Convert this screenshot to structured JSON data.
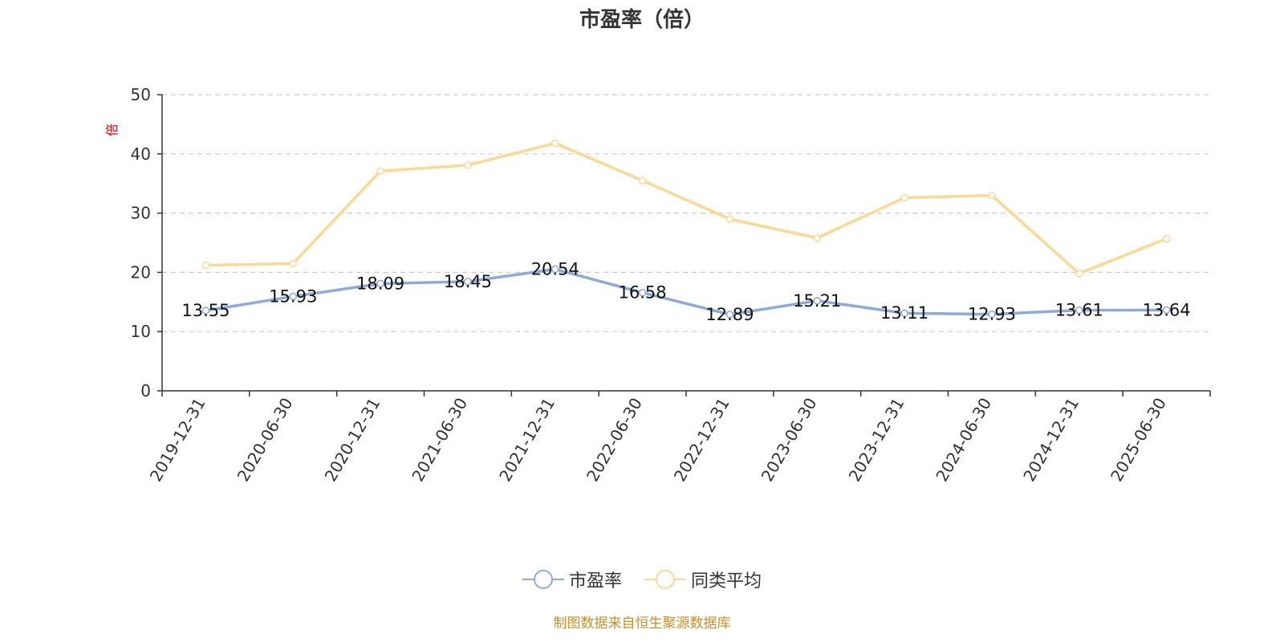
{
  "colors": {
    "series1": "#8eaad8",
    "series2": "#fbd896",
    "axis": "#333333",
    "grid": "#cccccc"
  },
  "footer": "制图数据来自恒生聚源数据库",
  "chart_data": {
    "type": "line",
    "title": "市盈率（倍）",
    "unit_label": "倍",
    "x": [
      "2019-12-31",
      "2020-06-30",
      "2020-12-31",
      "2021-06-30",
      "2021-12-31",
      "2022-06-30",
      "2022-12-31",
      "2023-06-30",
      "2023-12-31",
      "2024-06-30",
      "2024-12-31",
      "2025-06-30"
    ],
    "ylim": [
      0,
      50
    ],
    "yticks": [
      0,
      10,
      20,
      30,
      40,
      50
    ],
    "grid": true,
    "legend_position": "bottom",
    "series": [
      {
        "name": "市盈率",
        "values": [
          13.55,
          15.93,
          18.09,
          18.45,
          20.54,
          16.58,
          12.89,
          15.21,
          13.11,
          12.93,
          13.61,
          13.64
        ],
        "labels": [
          "13.55",
          "15.93",
          "18.09",
          "18.45",
          "20.54",
          "16.58",
          "12.89",
          "15.21",
          "13.11",
          "12.93",
          "13.61",
          "13.64"
        ]
      },
      {
        "name": "同类平均",
        "values": [
          21.2,
          21.5,
          37.1,
          38.1,
          41.8,
          35.5,
          29.0,
          25.8,
          32.6,
          33.0,
          19.8,
          25.7
        ]
      }
    ]
  }
}
